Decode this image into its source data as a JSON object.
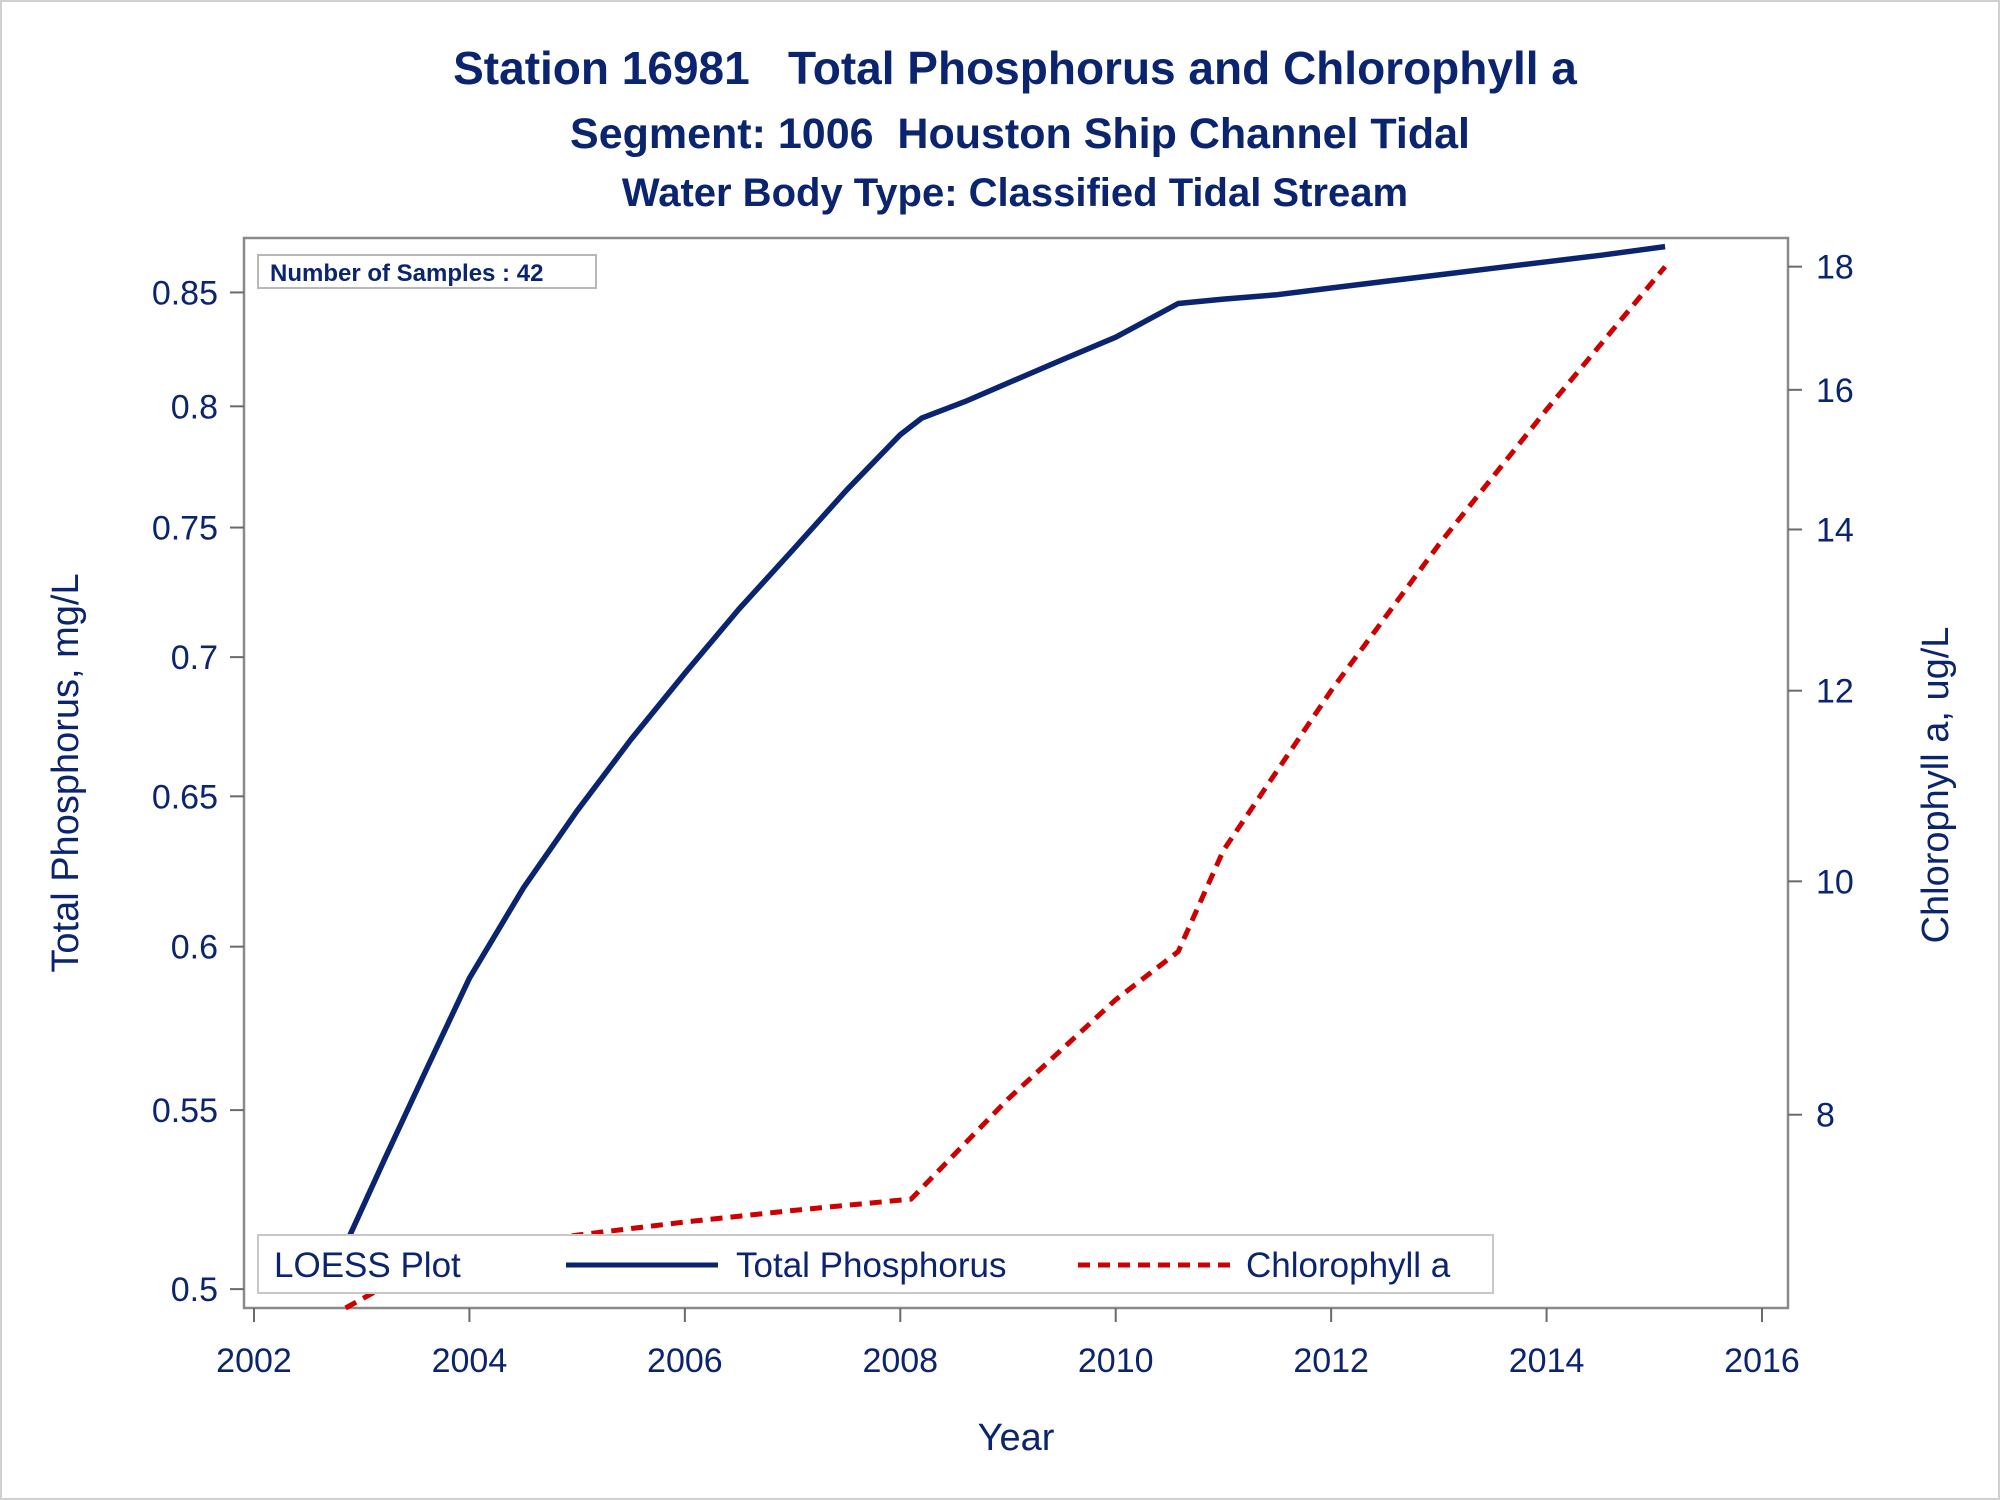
{
  "titles": {
    "line1": "Station 16981   Total Phosphorus and Chlorophyll a",
    "line2": "Segment: 1006  Houston Ship Channel Tidal",
    "line3": "Water Body Type: Classified Tidal Stream"
  },
  "inset": {
    "text": "Number of Samples : 42"
  },
  "legend": {
    "title": "LOESS Plot",
    "items": [
      {
        "label": "Total Phosphorus",
        "color": "#0b2470",
        "style": "solid"
      },
      {
        "label": "Chlorophyll a",
        "color": "#cc0000",
        "style": "dashed"
      }
    ]
  },
  "chart_data": {
    "type": "line",
    "xlabel": "Year",
    "ylabel": "Total Phosphorus, mg/L",
    "y2label": "Chlorophyll a, ug/L",
    "xlim": [
      2002,
      2016
    ],
    "xticks": [
      2002,
      2004,
      2006,
      2008,
      2010,
      2012,
      2014,
      2016
    ],
    "xtick_labels": [
      "2002",
      "2004",
      "2006",
      "2008",
      "2010",
      "2012",
      "2014",
      "2016"
    ],
    "y_scale": "log",
    "ylim": [
      0.495,
      0.875
    ],
    "yticks": [
      0.5,
      0.55,
      0.6,
      0.65,
      0.7,
      0.75,
      0.8,
      0.85
    ],
    "ytick_labels": [
      "0.5",
      "0.55",
      "0.6",
      "0.65",
      "0.7",
      "0.75",
      "0.8",
      "0.85"
    ],
    "y2_scale": "log",
    "y2lim": [
      6.65,
      18.5
    ],
    "y2ticks": [
      8,
      10,
      12,
      14,
      16,
      18
    ],
    "y2tick_labels": [
      "8",
      "10",
      "12",
      "14",
      "16",
      "18"
    ],
    "grid": false,
    "legend_position": "bottom-inside",
    "series": [
      {
        "name": "Total Phosphorus",
        "axis": "left",
        "color": "#0b2470",
        "style": "solid",
        "x": [
          2002.85,
          2003.2,
          2003.6,
          2004.0,
          2004.5,
          2005.0,
          2005.5,
          2006.0,
          2006.5,
          2007.0,
          2007.5,
          2008.0,
          2008.2,
          2008.6,
          2009.0,
          2009.5,
          2010.0,
          2010.58,
          2011.0,
          2011.5,
          2012.0,
          2012.5,
          2013.0,
          2013.5,
          2014.0,
          2014.5,
          2015.1
        ],
        "values": [
          0.512,
          0.535,
          0.562,
          0.59,
          0.619,
          0.645,
          0.67,
          0.694,
          0.718,
          0.741,
          0.765,
          0.788,
          0.795,
          0.802,
          0.81,
          0.82,
          0.83,
          0.845,
          0.847,
          0.849,
          0.852,
          0.855,
          0.858,
          0.861,
          0.864,
          0.867,
          0.871
        ]
      },
      {
        "name": "Chlorophyll a",
        "axis": "right",
        "color": "#cc0000",
        "style": "dashed",
        "x": [
          2002.85,
          2003.5,
          2004.0,
          2005.0,
          2006.0,
          2007.0,
          2008.1,
          2009.0,
          2010.0,
          2010.58,
          2011.0,
          2012.0,
          2013.0,
          2014.0,
          2015.1
        ],
        "values": [
          6.65,
          6.9,
          7.02,
          7.13,
          7.22,
          7.3,
          7.38,
          8.12,
          8.93,
          9.35,
          10.3,
          12.0,
          13.8,
          15.7,
          18.0
        ]
      }
    ]
  }
}
